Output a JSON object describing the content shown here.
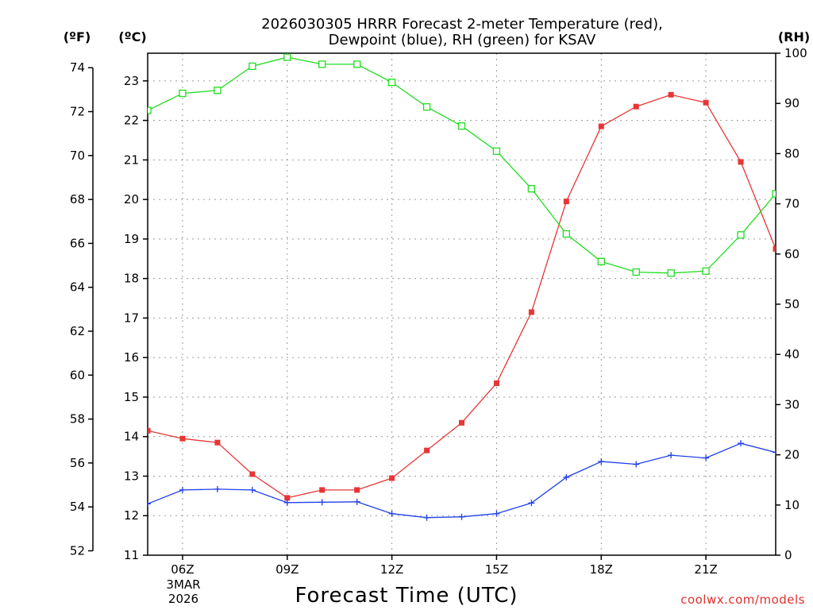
{
  "chart_data": {
    "type": "line",
    "title_line1": "2026030305 HRRR Forecast 2-meter Temperature (red),",
    "title_line2": "Dewpoint (blue), RH (green) for KSAV",
    "xlabel": "Forecast Time (UTC)",
    "unit_f": "(ºF)",
    "unit_c": "(ºC)",
    "unit_rh": "(RH)",
    "watermark": "coolwx.com/models",
    "x_range": [
      5,
      23
    ],
    "x_ticks": [
      {
        "hour": 6,
        "label": "06Z"
      },
      {
        "hour": 9,
        "label": "09Z"
      },
      {
        "hour": 12,
        "label": "12Z"
      },
      {
        "hour": 15,
        "label": "15Z"
      },
      {
        "hour": 18,
        "label": "18Z"
      },
      {
        "hour": 21,
        "label": "21Z"
      }
    ],
    "date_labels": [
      "3MAR",
      "2026"
    ],
    "y_celsius_range": [
      11,
      23.7
    ],
    "y_celsius_ticks": [
      "11",
      "12",
      "13",
      "14",
      "15",
      "16",
      "17",
      "18",
      "19",
      "20",
      "21",
      "22",
      "23"
    ],
    "y_fahrenheit_ticks": [
      "52",
      "54",
      "56",
      "58",
      "60",
      "62",
      "64",
      "66",
      "68",
      "70",
      "72",
      "74"
    ],
    "y_rh_range": [
      0,
      100
    ],
    "y_rh_ticks": [
      "0",
      "10",
      "20",
      "30",
      "40",
      "50",
      "60",
      "70",
      "80",
      "90",
      "100"
    ],
    "x": [
      5,
      6,
      7,
      8,
      9,
      10,
      11,
      12,
      13,
      14,
      15,
      16,
      17,
      18,
      19,
      20,
      21,
      22,
      23
    ],
    "series": [
      {
        "name": "Temperature (°C)",
        "color": "#e83535",
        "marker": "filled-square",
        "values": [
          14.15,
          13.95,
          13.85,
          13.05,
          12.45,
          12.65,
          12.65,
          12.95,
          13.65,
          14.35,
          15.35,
          17.15,
          19.95,
          21.85,
          22.35,
          22.65,
          22.45,
          20.95,
          18.75
        ]
      },
      {
        "name": "Dewpoint (°C)",
        "color": "#2040e8",
        "marker": "plus",
        "values": [
          12.3,
          12.65,
          12.67,
          12.65,
          12.33,
          12.34,
          12.35,
          12.05,
          11.95,
          11.97,
          12.05,
          12.32,
          12.97,
          13.37,
          13.3,
          13.53,
          13.46,
          13.83,
          13.6
        ]
      },
      {
        "name": "RH (%)",
        "color": "#20dd20",
        "marker": "open-square",
        "values": [
          88.6,
          92.0,
          92.6,
          97.4,
          99.2,
          97.8,
          97.8,
          94.2,
          89.3,
          85.5,
          80.5,
          73.0,
          64.0,
          58.5,
          56.4,
          56.2,
          56.6,
          63.8,
          72.0
        ]
      }
    ]
  }
}
